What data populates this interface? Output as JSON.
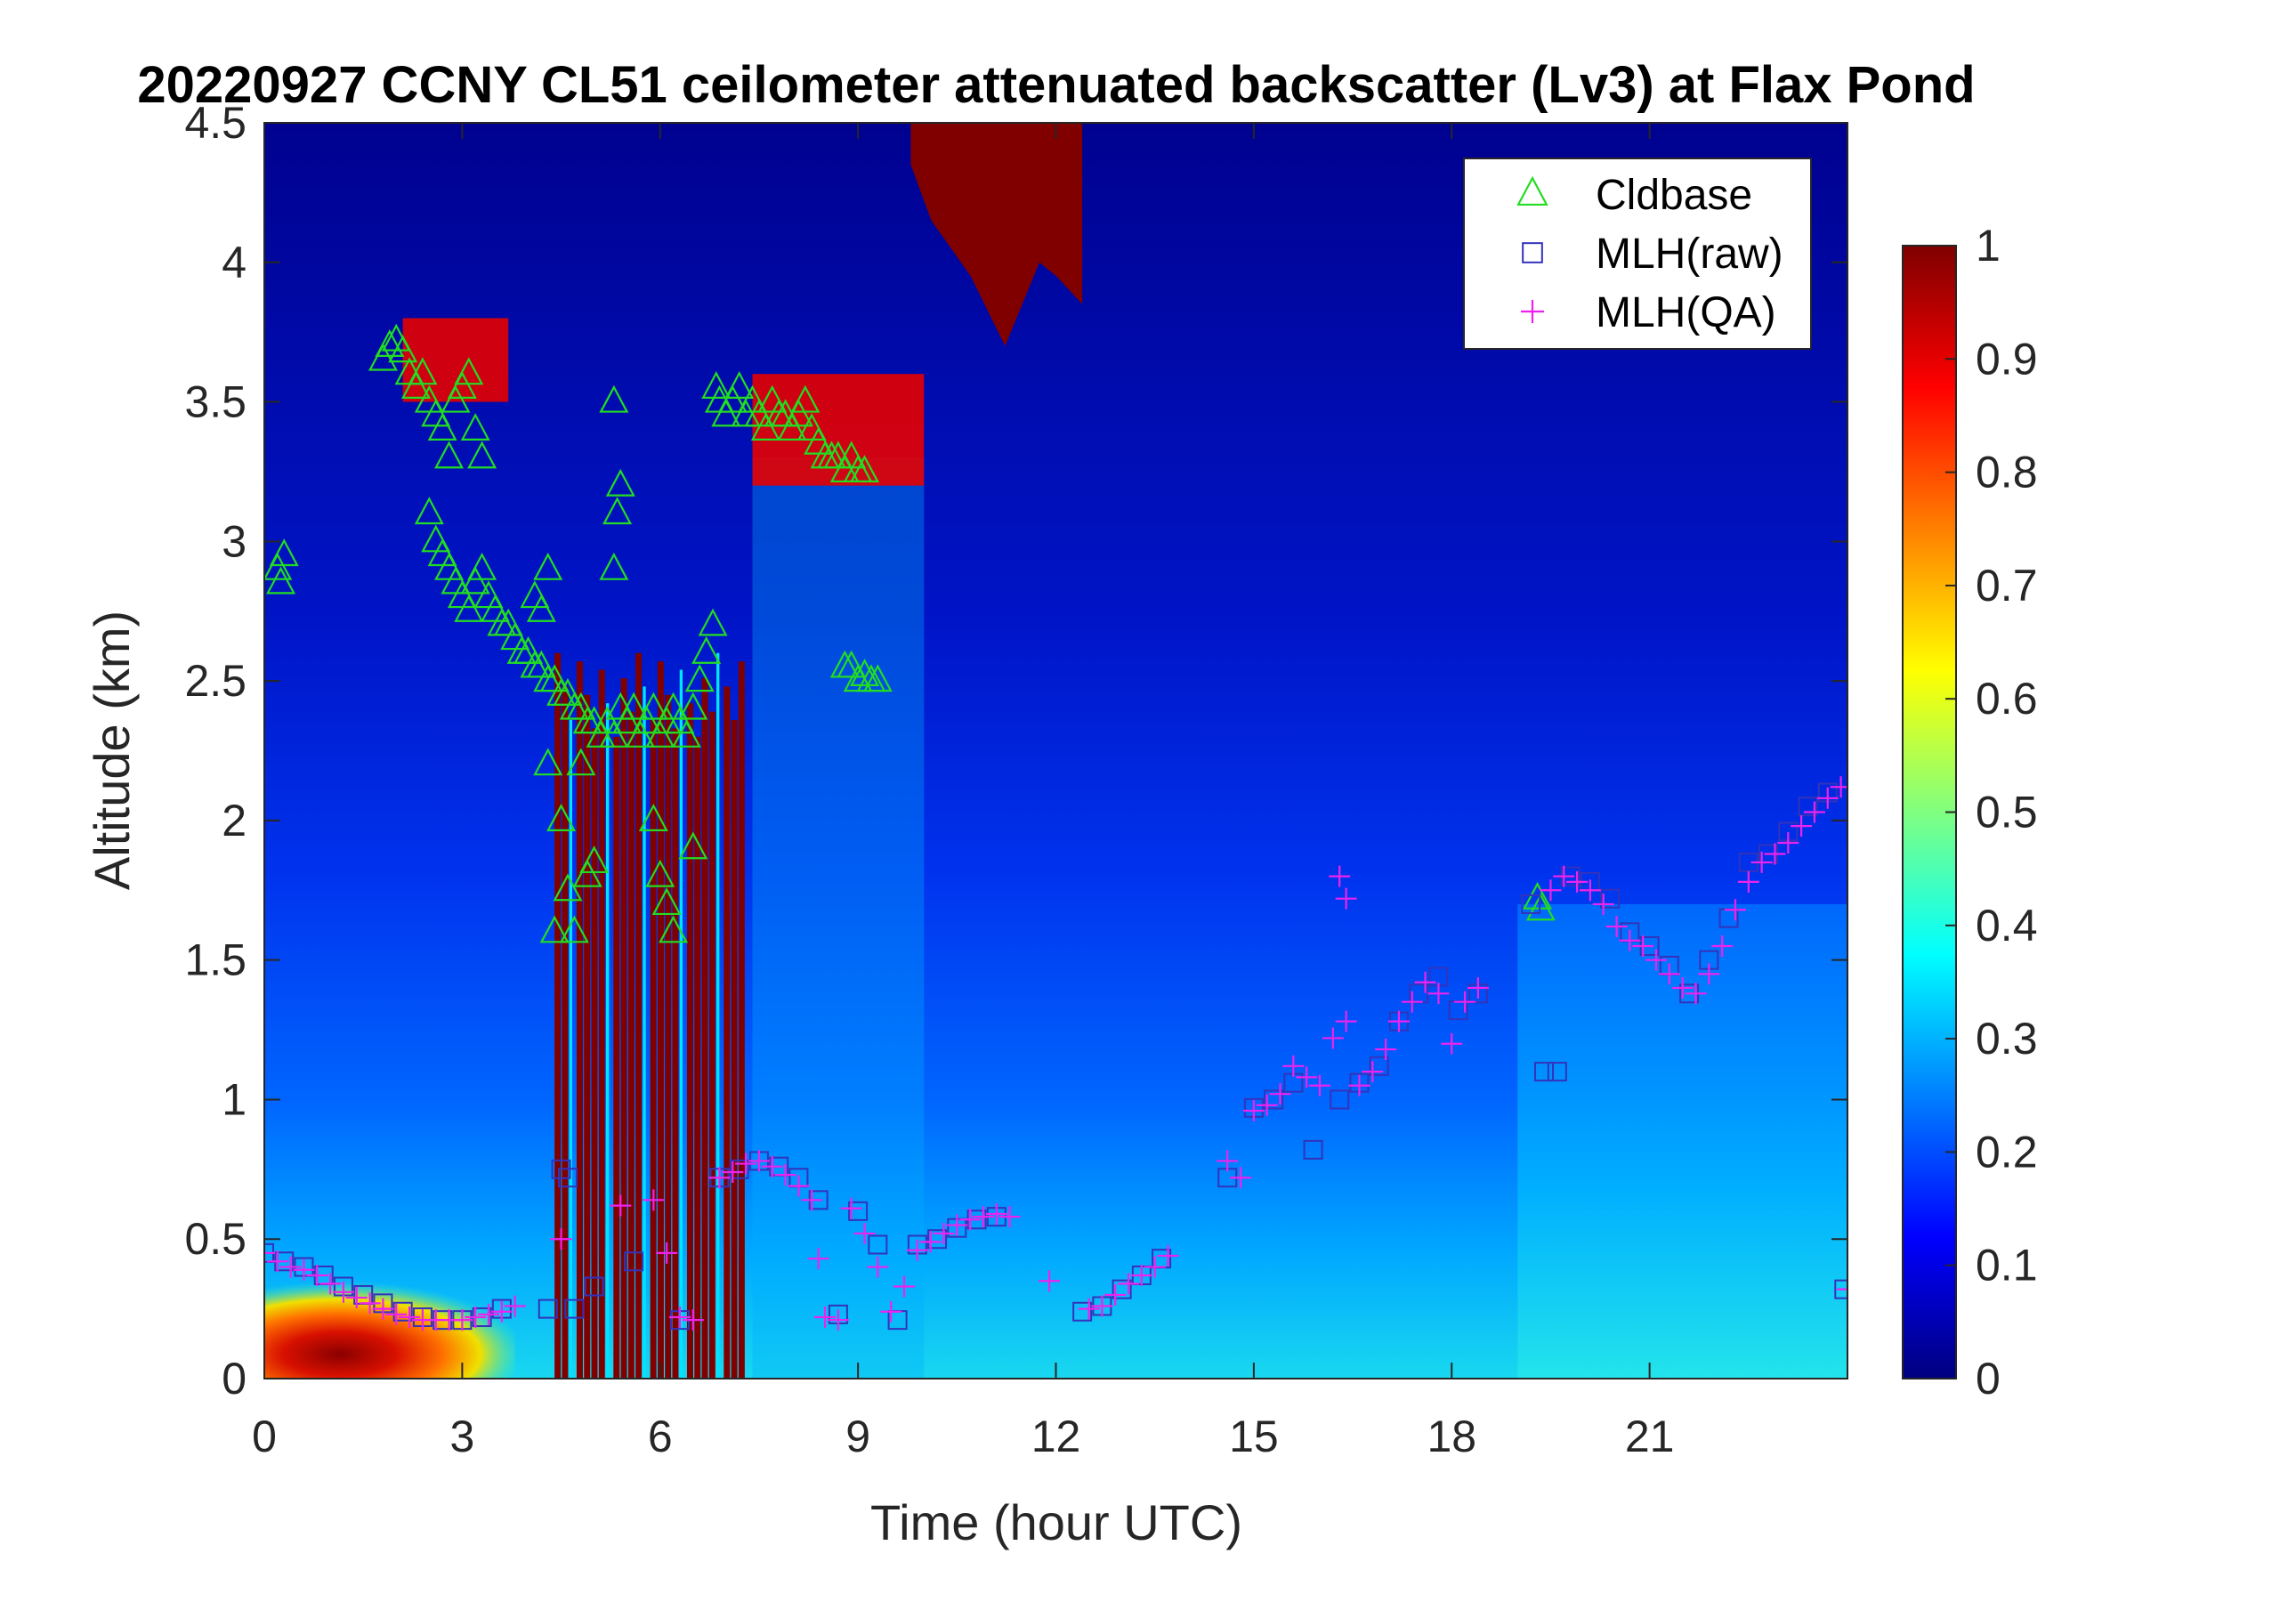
{
  "chart_data": {
    "type": "heatmap",
    "title": "20220927 CCNY CL51 ceilometer attenuated backscatter (Lv3) at Flax Pond",
    "xlabel": "Time (hour UTC)",
    "ylabel": "Altitude (km)",
    "xlim": [
      0,
      24
    ],
    "ylim": [
      0,
      4.5
    ],
    "xticks": [
      0,
      3,
      6,
      9,
      12,
      15,
      18,
      21
    ],
    "xtick_labels": [
      "0",
      "3",
      "6",
      "9",
      "12",
      "15",
      "18",
      "21"
    ],
    "yticks": [
      0,
      0.5,
      1,
      1.5,
      2,
      2.5,
      3,
      3.5,
      4,
      4.5
    ],
    "ytick_labels": [
      "0",
      "0.5",
      "1",
      "1.5",
      "2",
      "2.5",
      "3",
      "3.5",
      "4",
      "4.5"
    ],
    "colorbar": {
      "colormap": "jet",
      "clim": [
        0,
        1
      ],
      "ticks": [
        0,
        0.1,
        0.2,
        0.3,
        0.4,
        0.5,
        0.6,
        0.7,
        0.8,
        0.9,
        1
      ],
      "tick_labels": [
        "0",
        "0.1",
        "0.2",
        "0.3",
        "0.4",
        "0.5",
        "0.6",
        "0.7",
        "0.8",
        "0.9",
        "1"
      ]
    },
    "legend": {
      "position": "top-right",
      "entries": [
        "Cldbase",
        "MLH(raw)",
        "MLH(QA)"
      ]
    },
    "background_features": [
      {
        "kind": "high-backscatter-column",
        "x_range": [
          4.4,
          7.3
        ],
        "y_range": [
          0,
          2.6
        ],
        "value": 1.0
      },
      {
        "kind": "near-surface-layer",
        "x_range": [
          0,
          3.8
        ],
        "y_range": [
          0,
          0.35
        ],
        "value": 0.85
      },
      {
        "kind": "upper-cloud",
        "x_range": [
          9.8,
          12.4
        ],
        "y_range": [
          3.5,
          4.5
        ],
        "value": 1.0
      },
      {
        "kind": "cloud-layer",
        "x_range": [
          2.1,
          3.7
        ],
        "y_range": [
          3.5,
          3.8
        ],
        "value": 0.9
      },
      {
        "kind": "cloud-layer",
        "x_range": [
          7.4,
          10.0
        ],
        "y_range": [
          3.2,
          3.6
        ],
        "value": 0.9
      }
    ],
    "series": [
      {
        "name": "Cldbase",
        "marker": "triangle",
        "color": "#22dd22",
        "x": [
          0.2,
          0.25,
          0.3,
          1.8,
          1.9,
          2.0,
          2.1,
          2.2,
          2.3,
          2.4,
          2.5,
          2.6,
          2.7,
          2.8,
          2.9,
          3.0,
          3.1,
          3.2,
          3.3,
          2.5,
          2.6,
          2.7,
          2.8,
          2.9,
          3.0,
          3.1,
          3.2,
          3.3,
          3.4,
          3.5,
          3.6,
          3.7,
          3.8,
          3.9,
          4.0,
          4.1,
          4.2,
          4.3,
          4.4,
          4.5,
          4.6,
          4.7,
          4.8,
          4.9,
          5.0,
          5.1,
          5.2,
          5.3,
          5.4,
          5.5,
          5.6,
          5.7,
          5.8,
          5.9,
          6.0,
          6.1,
          6.2,
          6.3,
          6.4,
          6.5,
          6.6,
          6.7,
          6.8,
          4.3,
          4.4,
          4.5,
          4.6,
          4.7,
          4.8,
          4.9,
          5.0,
          5.3,
          5.4,
          5.9,
          6.0,
          6.1,
          6.2,
          6.5,
          5.3,
          5.35,
          6.85,
          6.9,
          7.0,
          7.1,
          7.2,
          7.3,
          7.4,
          7.5,
          7.6,
          7.7,
          7.8,
          7.9,
          8.0,
          8.1,
          8.2,
          8.3,
          8.4,
          8.5,
          8.6,
          8.7,
          8.8,
          8.9,
          9.0,
          9.1,
          8.8,
          8.9,
          9.0,
          9.1,
          9.2,
          9.3,
          19.3,
          19.35,
          4.1,
          4.2,
          4.3
        ],
        "y": [
          2.9,
          2.85,
          2.95,
          3.65,
          3.7,
          3.72,
          3.68,
          3.6,
          3.55,
          3.6,
          3.5,
          3.45,
          3.4,
          3.3,
          3.5,
          3.55,
          3.6,
          3.4,
          3.3,
          3.1,
          3.0,
          2.95,
          2.9,
          2.85,
          2.8,
          2.75,
          2.85,
          2.9,
          2.8,
          2.75,
          2.7,
          2.7,
          2.65,
          2.6,
          2.6,
          2.55,
          2.55,
          2.5,
          2.5,
          2.45,
          2.45,
          2.4,
          2.4,
          2.35,
          2.35,
          2.3,
          2.35,
          2.3,
          2.4,
          2.35,
          2.4,
          2.3,
          2.35,
          2.4,
          2.3,
          2.35,
          2.4,
          2.35,
          2.3,
          2.4,
          2.5,
          2.6,
          2.7,
          2.2,
          1.6,
          2.0,
          1.75,
          1.6,
          2.2,
          1.8,
          1.85,
          2.9,
          3.2,
          2.0,
          1.8,
          1.7,
          1.6,
          1.9,
          3.5,
          3.1,
          3.55,
          3.5,
          3.45,
          3.5,
          3.55,
          3.45,
          3.5,
          3.45,
          3.4,
          3.5,
          3.45,
          3.45,
          3.4,
          3.45,
          3.5,
          3.4,
          3.35,
          3.3,
          3.3,
          3.3,
          3.25,
          3.3,
          3.25,
          3.25,
          2.55,
          2.55,
          2.5,
          2.52,
          2.5,
          2.5,
          1.72,
          1.68,
          2.8,
          2.75,
          2.9
        ]
      },
      {
        "name": "MLH(raw)",
        "marker": "square",
        "color": "#3333bb",
        "x": [
          0.0,
          0.3,
          0.6,
          0.9,
          1.2,
          1.5,
          1.8,
          2.1,
          2.4,
          2.7,
          3.0,
          3.3,
          3.6,
          4.3,
          4.5,
          4.6,
          4.7,
          5.0,
          5.6,
          6.3,
          6.9,
          7.2,
          7.5,
          7.8,
          8.1,
          8.4,
          8.7,
          9.0,
          9.3,
          9.6,
          9.9,
          10.2,
          10.5,
          10.8,
          11.1,
          12.4,
          12.7,
          13.0,
          13.3,
          13.6,
          14.6,
          15.0,
          15.3,
          15.6,
          15.9,
          16.3,
          16.6,
          16.9,
          17.2,
          17.5,
          17.8,
          18.1,
          18.4,
          19.2,
          19.4,
          19.6,
          19.8,
          20.1,
          20.4,
          20.7,
          21.0,
          21.3,
          21.6,
          21.9,
          22.2,
          22.5,
          22.8,
          23.1,
          23.4,
          23.7,
          23.95
        ],
        "y": [
          0.45,
          0.42,
          0.4,
          0.37,
          0.33,
          0.3,
          0.27,
          0.24,
          0.22,
          0.21,
          0.21,
          0.22,
          0.25,
          0.25,
          0.75,
          0.72,
          0.25,
          0.33,
          0.42,
          0.21,
          0.72,
          0.75,
          0.78,
          0.76,
          0.72,
          0.64,
          0.23,
          0.6,
          0.48,
          0.21,
          0.48,
          0.5,
          0.54,
          0.57,
          0.58,
          0.24,
          0.26,
          0.32,
          0.37,
          0.43,
          0.72,
          0.97,
          1.0,
          1.06,
          0.82,
          1.0,
          1.06,
          1.12,
          1.28,
          1.38,
          1.44,
          1.32,
          1.38,
          1.7,
          1.1,
          1.1,
          1.8,
          1.78,
          1.72,
          1.6,
          1.55,
          1.48,
          1.38,
          1.5,
          1.65,
          1.85,
          1.88,
          1.96,
          2.05,
          2.1,
          0.32
        ]
      },
      {
        "name": "MLH(QA)",
        "marker": "plus",
        "color": "#ee22ee",
        "x": [
          0.0,
          0.2,
          0.4,
          0.6,
          0.8,
          1.0,
          1.2,
          1.4,
          1.6,
          1.8,
          2.0,
          2.2,
          2.4,
          2.6,
          2.8,
          3.0,
          3.2,
          3.4,
          3.6,
          3.8,
          4.5,
          5.4,
          5.9,
          6.1,
          6.3,
          6.5,
          6.9,
          7.1,
          7.3,
          7.5,
          7.7,
          7.9,
          8.1,
          8.3,
          8.5,
          8.7,
          8.9,
          9.1,
          9.3,
          9.5,
          9.7,
          9.9,
          10.1,
          10.3,
          10.5,
          10.7,
          10.9,
          11.1,
          11.3,
          11.9,
          12.5,
          12.7,
          12.9,
          13.1,
          13.3,
          13.5,
          13.7,
          14.6,
          14.8,
          15.0,
          15.2,
          15.4,
          15.6,
          15.8,
          16.0,
          16.2,
          16.4,
          16.6,
          16.8,
          17.0,
          17.2,
          17.4,
          17.6,
          17.8,
          18.0,
          18.2,
          18.4,
          19.5,
          19.7,
          19.9,
          20.1,
          20.3,
          20.5,
          20.7,
          20.9,
          21.1,
          21.3,
          21.5,
          21.7,
          21.9,
          22.1,
          22.3,
          22.5,
          22.7,
          22.9,
          23.1,
          23.3,
          23.5,
          23.7,
          23.9,
          24.0,
          8.4,
          16.3,
          16.4
        ],
        "y": [
          0.45,
          0.42,
          0.4,
          0.39,
          0.37,
          0.34,
          0.31,
          0.29,
          0.27,
          0.25,
          0.23,
          0.22,
          0.21,
          0.21,
          0.21,
          0.21,
          0.22,
          0.23,
          0.24,
          0.26,
          0.5,
          0.62,
          0.64,
          0.45,
          0.22,
          0.21,
          0.72,
          0.74,
          0.77,
          0.78,
          0.76,
          0.73,
          0.69,
          0.64,
          0.22,
          0.21,
          0.61,
          0.52,
          0.4,
          0.24,
          0.33,
          0.46,
          0.49,
          0.52,
          0.55,
          0.57,
          0.58,
          0.59,
          0.58,
          0.35,
          0.25,
          0.26,
          0.3,
          0.34,
          0.37,
          0.4,
          0.44,
          0.78,
          0.72,
          0.96,
          0.98,
          1.02,
          1.12,
          1.08,
          1.05,
          1.22,
          1.28,
          1.05,
          1.1,
          1.18,
          1.28,
          1.35,
          1.42,
          1.38,
          1.2,
          1.35,
          1.4,
          1.75,
          1.8,
          1.78,
          1.75,
          1.7,
          1.62,
          1.57,
          1.55,
          1.5,
          1.45,
          1.4,
          1.38,
          1.45,
          1.55,
          1.68,
          1.78,
          1.85,
          1.88,
          1.92,
          1.98,
          2.03,
          2.08,
          2.12,
          0.32,
          0.43,
          1.8,
          1.72
        ]
      }
    ]
  }
}
